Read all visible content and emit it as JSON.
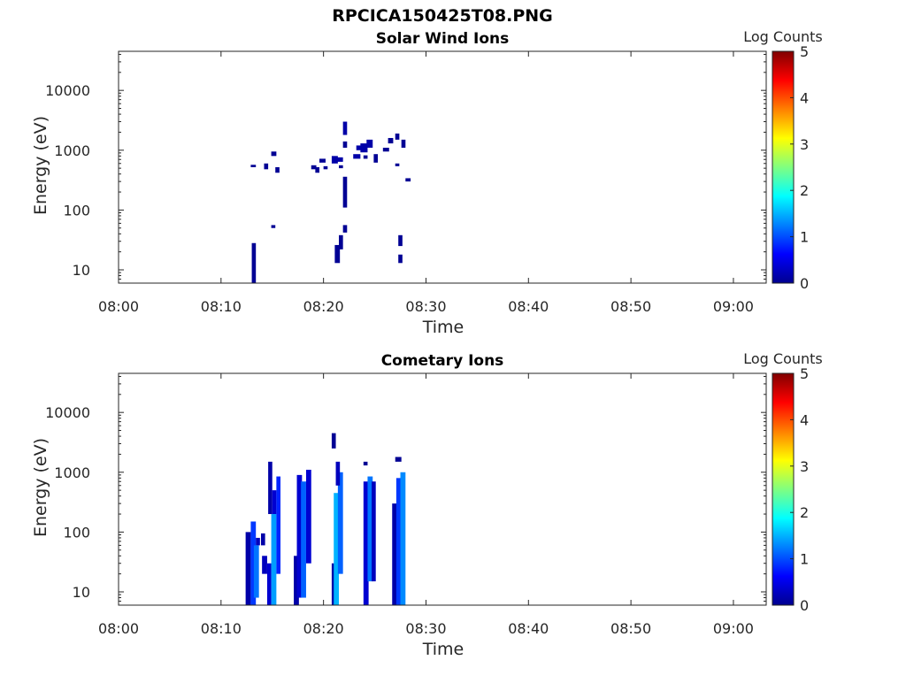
{
  "figure": {
    "title": "RPCICA150425T08.PNG"
  },
  "chart_data": [
    {
      "type": "heatmap",
      "title": "Solar Wind Ions",
      "xlabel": "Time",
      "ylabel": "Energy (eV)",
      "x_ticks": [
        "08:00",
        "08:10",
        "08:20",
        "08:30",
        "08:40",
        "08:50",
        "09:00"
      ],
      "x_range_minutes": [
        0,
        63.2
      ],
      "y_scale": "log",
      "y_ticks": [
        "10",
        "100",
        "1000",
        "10000"
      ],
      "y_range_eV": [
        6,
        45000
      ],
      "colorbar": {
        "label": "Log Counts",
        "range": [
          0,
          5
        ],
        "ticks": [
          "0",
          "1",
          "2",
          "3",
          "4",
          "5"
        ],
        "colormap": "jet"
      },
      "cells_note": "each cell: [start minute after 08:00, end minute, energy low eV, energy high eV, log counts]",
      "cells": [
        [
          13.0,
          13.4,
          6,
          28,
          0.1
        ],
        [
          12.9,
          13.4,
          520,
          570,
          0.1
        ],
        [
          14.2,
          14.6,
          480,
          600,
          0.1
        ],
        [
          14.9,
          15.4,
          800,
          950,
          0.1
        ],
        [
          15.3,
          15.7,
          420,
          520,
          0.1
        ],
        [
          14.9,
          15.3,
          50,
          56,
          0.1
        ],
        [
          18.8,
          19.3,
          480,
          560,
          0.1
        ],
        [
          19.2,
          19.6,
          420,
          520,
          0.1
        ],
        [
          19.6,
          20.2,
          620,
          720,
          0.1
        ],
        [
          20.0,
          20.4,
          480,
          540,
          0.1
        ],
        [
          20.8,
          21.4,
          600,
          800,
          0.2
        ],
        [
          21.3,
          21.9,
          640,
          760,
          0.2
        ],
        [
          21.5,
          21.9,
          500,
          560,
          0.1
        ],
        [
          21.9,
          22.3,
          1800,
          3000,
          0.2
        ],
        [
          21.9,
          22.3,
          1100,
          1400,
          0.1
        ],
        [
          21.9,
          22.3,
          110,
          360,
          0.1
        ],
        [
          21.9,
          22.3,
          42,
          56,
          0.1
        ],
        [
          21.5,
          21.9,
          22,
          38,
          0.1
        ],
        [
          21.1,
          21.6,
          13,
          26,
          0.1
        ],
        [
          22.9,
          23.6,
          720,
          860,
          0.2
        ],
        [
          23.2,
          23.8,
          1000,
          1200,
          0.2
        ],
        [
          23.6,
          24.3,
          920,
          1300,
          0.2
        ],
        [
          24.2,
          24.8,
          1100,
          1500,
          0.2
        ],
        [
          23.9,
          24.3,
          720,
          820,
          0.1
        ],
        [
          24.9,
          25.3,
          620,
          860,
          0.1
        ],
        [
          25.8,
          26.4,
          950,
          1100,
          0.1
        ],
        [
          26.3,
          26.8,
          1300,
          1600,
          0.1
        ],
        [
          27.0,
          27.4,
          1500,
          1900,
          0.1
        ],
        [
          27.6,
          28.0,
          1100,
          1500,
          0.1
        ],
        [
          27.0,
          27.4,
          540,
          600,
          0.1
        ],
        [
          27.3,
          27.7,
          25,
          38,
          0.1
        ],
        [
          27.3,
          27.7,
          13,
          18,
          0.1
        ],
        [
          28.0,
          28.5,
          300,
          340,
          0.1
        ]
      ]
    },
    {
      "type": "heatmap",
      "title": "Cometary Ions",
      "xlabel": "Time",
      "ylabel": "Energy (eV)",
      "x_ticks": [
        "08:00",
        "08:10",
        "08:20",
        "08:30",
        "08:40",
        "08:50",
        "09:00"
      ],
      "x_range_minutes": [
        0,
        63.2
      ],
      "y_scale": "log",
      "y_ticks": [
        "10",
        "100",
        "1000",
        "10000"
      ],
      "y_range_eV": [
        6,
        45000
      ],
      "colorbar": {
        "label": "Log Counts",
        "range": [
          0,
          5
        ],
        "ticks": [
          "0",
          "1",
          "2",
          "3",
          "4",
          "5"
        ],
        "colormap": "jet"
      },
      "cells_note": "each cell: [start minute after 08:00, end minute, energy low eV, energy high eV, log counts]",
      "cells": [
        [
          12.4,
          12.9,
          6,
          100,
          0.2
        ],
        [
          12.9,
          13.4,
          6,
          150,
          0.9
        ],
        [
          13.2,
          13.7,
          8,
          60,
          1.2
        ],
        [
          13.4,
          13.8,
          60,
          80,
          0.3
        ],
        [
          13.9,
          14.3,
          60,
          95,
          0.2
        ],
        [
          14.0,
          14.5,
          20,
          40,
          0.3
        ],
        [
          14.5,
          14.9,
          6,
          30,
          0.4
        ],
        [
          14.6,
          15.0,
          200,
          1500,
          0.2
        ],
        [
          14.9,
          15.4,
          6,
          200,
          1.4
        ],
        [
          15.0,
          15.4,
          200,
          500,
          0.4
        ],
        [
          15.4,
          15.8,
          20,
          850,
          0.8
        ],
        [
          17.1,
          17.6,
          6,
          40,
          0.2
        ],
        [
          17.4,
          17.9,
          8,
          900,
          0.4
        ],
        [
          17.8,
          18.3,
          8,
          700,
          1.1
        ],
        [
          18.3,
          18.8,
          30,
          1100,
          0.4
        ],
        [
          20.8,
          21.2,
          2500,
          4500,
          0.1
        ],
        [
          20.8,
          21.2,
          6,
          30,
          0.2
        ],
        [
          21.0,
          21.5,
          6,
          450,
          1.5
        ],
        [
          21.4,
          21.9,
          20,
          1000,
          1.1
        ],
        [
          21.2,
          21.6,
          600,
          1500,
          0.3
        ],
        [
          23.9,
          24.4,
          6,
          700,
          0.4
        ],
        [
          24.3,
          24.8,
          15,
          850,
          1.2
        ],
        [
          23.9,
          24.3,
          1300,
          1500,
          0.1
        ],
        [
          24.7,
          25.1,
          15,
          700,
          0.3
        ],
        [
          26.7,
          27.2,
          6,
          300,
          0.2
        ],
        [
          27.1,
          27.6,
          6,
          800,
          0.9
        ],
        [
          27.5,
          28.0,
          6,
          1000,
          1.3
        ],
        [
          27.0,
          27.6,
          1500,
          1800,
          0.1
        ]
      ]
    }
  ]
}
